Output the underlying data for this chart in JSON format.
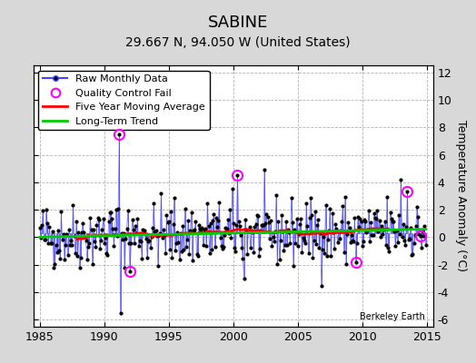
{
  "title": "SABINE",
  "subtitle": "29.667 N, 94.050 W (United States)",
  "ylabel_right": "Temperature Anomaly (°C)",
  "xlim": [
    1984.5,
    2015.5
  ],
  "ylim": [
    -6.5,
    12.5
  ],
  "yticks": [
    -6,
    -4,
    -2,
    0,
    2,
    4,
    6,
    8,
    10,
    12
  ],
  "xticks": [
    1985,
    1990,
    1995,
    2000,
    2005,
    2010,
    2015
  ],
  "bg_color": "#d8d8d8",
  "plot_bg_color": "#ffffff",
  "grid_color": "#aaaaaa",
  "watermark": "Berkeley Earth",
  "raw_line_color": "#4444ff",
  "raw_dot_color": "#000000",
  "ma_color": "#ff0000",
  "trend_color": "#00cc00",
  "qc_color": "#ff00ff",
  "seed": 42,
  "n_points": 360,
  "title_fontsize": 13,
  "subtitle_fontsize": 10,
  "tick_fontsize": 9,
  "ylabel_fontsize": 9,
  "legend_fontsize": 8
}
